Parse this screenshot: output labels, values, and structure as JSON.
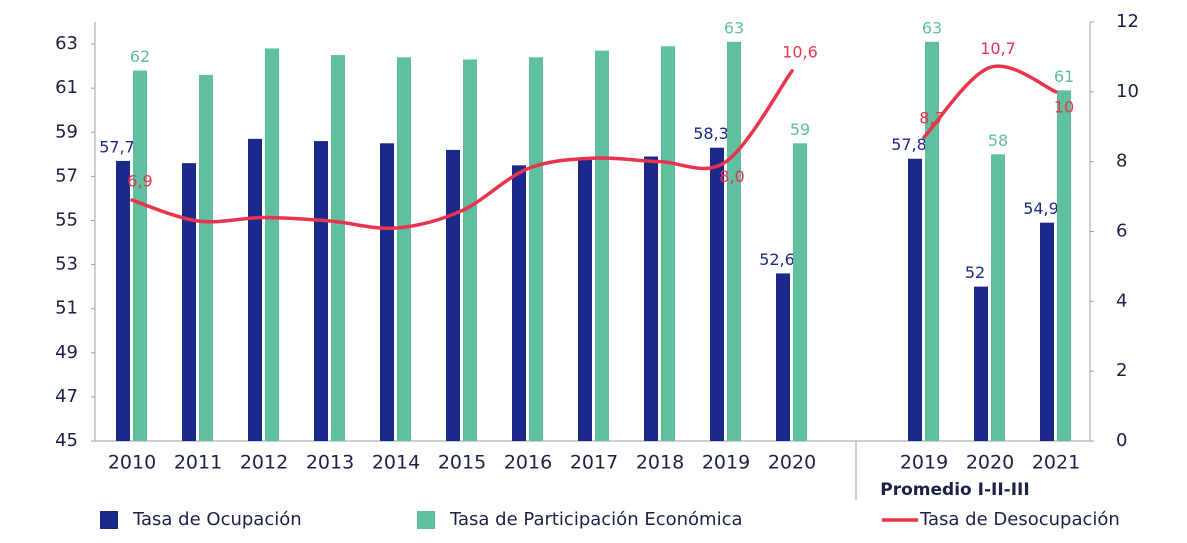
{
  "chart_data": {
    "type": "bar",
    "categories": [
      "2010",
      "2011",
      "2012",
      "2013",
      "2014",
      "2015",
      "2016",
      "2017",
      "2018",
      "2019",
      "2020",
      null,
      "2019",
      "2020",
      "2021"
    ],
    "group_label": "Promedio I-II-III",
    "series": [
      {
        "name": "Tasa de Ocupación",
        "type": "bar",
        "color": "#1b2a8a",
        "values": [
          57.7,
          57.6,
          58.7,
          58.6,
          58.5,
          58.2,
          57.5,
          57.8,
          57.9,
          58.3,
          52.6,
          null,
          57.8,
          52,
          54.9
        ],
        "value_labels": [
          "57,7",
          null,
          null,
          null,
          null,
          null,
          null,
          null,
          null,
          "58,3",
          "52,6",
          null,
          "57,8",
          "52",
          "54,9"
        ]
      },
      {
        "name": "Tasa de Participación Económica",
        "type": "bar",
        "color": "#5fbf9e",
        "values": [
          61.8,
          61.6,
          62.8,
          62.5,
          62.4,
          62.3,
          62.4,
          62.7,
          62.9,
          63.1,
          58.5,
          null,
          63.1,
          58,
          60.9
        ],
        "value_labels": [
          "62",
          null,
          null,
          null,
          null,
          null,
          null,
          null,
          null,
          "63",
          "59",
          null,
          "63",
          "58",
          "61"
        ]
      },
      {
        "name": "Tasa de Desocupación",
        "type": "line",
        "axis": "y2",
        "color": "#e8344c",
        "values": [
          6.9,
          6.3,
          6.4,
          6.3,
          6.1,
          6.6,
          7.8,
          8.1,
          8.0,
          8.0,
          10.6,
          null,
          8.7,
          10.7,
          10
        ],
        "value_labels": [
          "6,9",
          null,
          null,
          null,
          null,
          null,
          null,
          null,
          null,
          "8,0",
          "10,6",
          null,
          "8,7",
          "10,7",
          "10"
        ]
      }
    ],
    "ylim": [
      45,
      64
    ],
    "yticks": [
      45,
      47,
      49,
      51,
      53,
      55,
      57,
      59,
      61,
      63
    ],
    "y2lim": [
      0,
      12
    ],
    "y2ticks": [
      0,
      2,
      4,
      6,
      8,
      10,
      12
    ],
    "grid": false,
    "legend": "bottom"
  }
}
